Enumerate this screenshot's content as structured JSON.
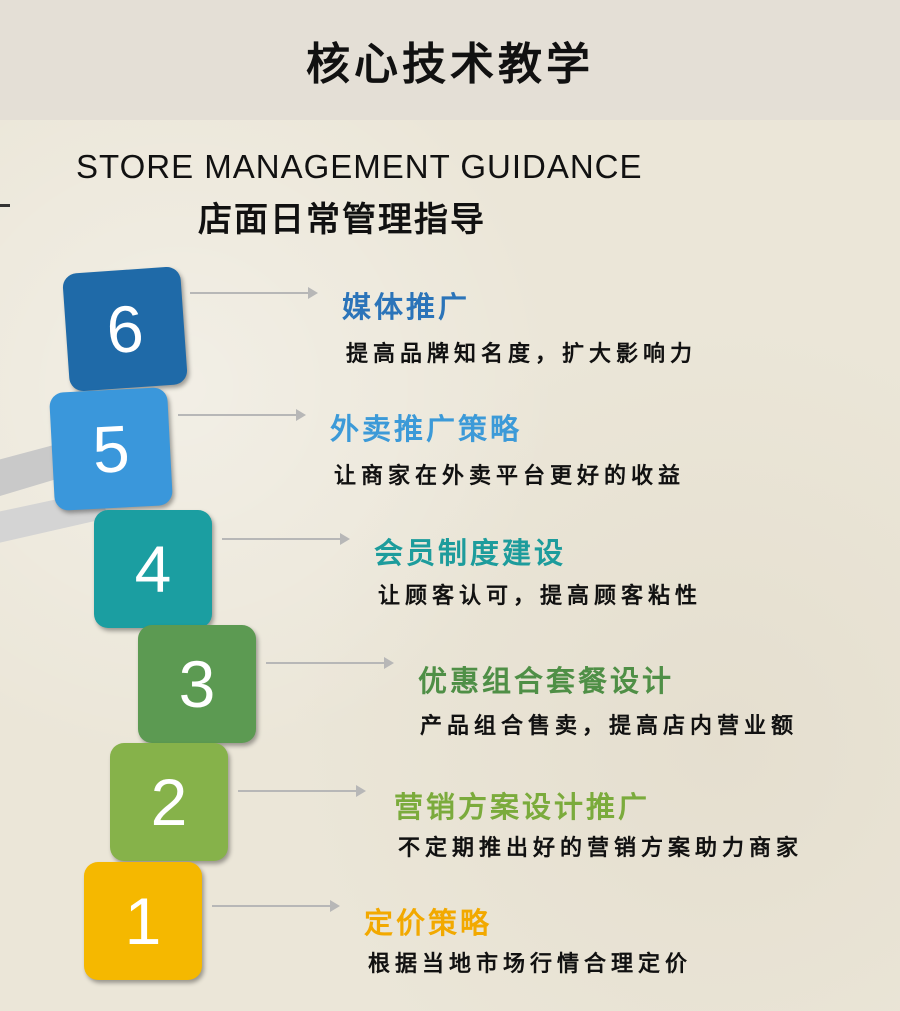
{
  "header": {
    "title": "核心技术教学"
  },
  "section": {
    "title_en": "STORE  MANAGEMENT  GUIDANCE",
    "title_cn": "店面日常管理指导"
  },
  "steps": [
    {
      "number": "6",
      "title": "媒体推广",
      "desc": "提高品牌知名度，扩大影响力",
      "color": "#1f6aa8",
      "title_color": "#2b74b9"
    },
    {
      "number": "5",
      "title": "外卖推广策略",
      "desc": "让商家在外卖平台更好的收益",
      "color": "#3a97db",
      "title_color": "#3c9ad8"
    },
    {
      "number": "4",
      "title": "会员制度建设",
      "desc": "让顾客认可，提高顾客粘性",
      "color": "#1b9ea1",
      "title_color": "#1d9c9c"
    },
    {
      "number": "3",
      "title": "优惠组合套餐设计",
      "desc": "产品组合售卖，提高店内营业额",
      "color": "#5c9a52",
      "title_color": "#4f8f46"
    },
    {
      "number": "2",
      "title": "营销方案设计推广",
      "desc": "不定期推出好的营销方案助力商家",
      "color": "#86b24a",
      "title_color": "#7bab3c"
    },
    {
      "number": "1",
      "title": "定价策略",
      "desc": "根据当地市场行情合理定价",
      "color": "#f5b800",
      "title_color": "#f2a900"
    }
  ]
}
